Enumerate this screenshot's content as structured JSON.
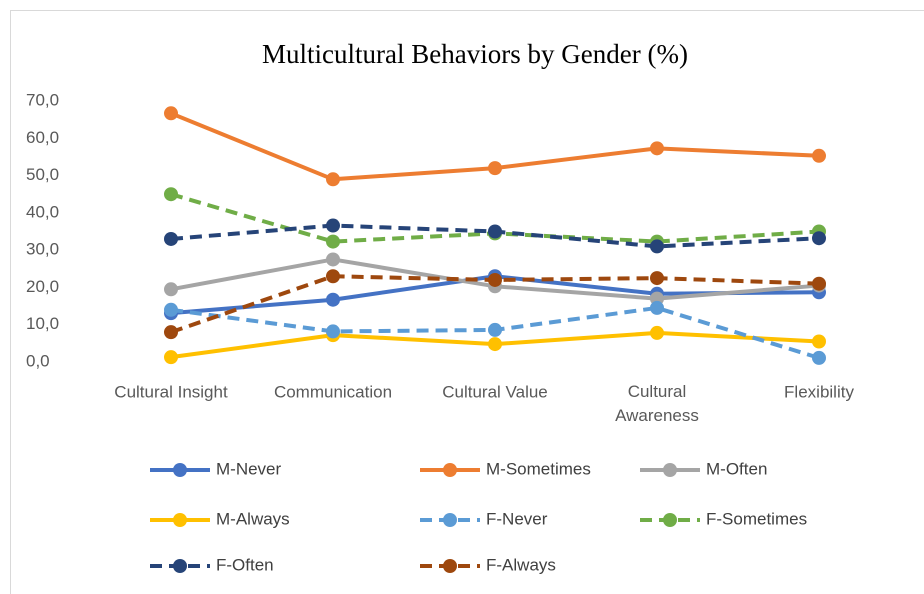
{
  "chart_data": {
    "type": "line",
    "title": "Multicultural Behaviors by Gender (%)",
    "categories": [
      "Cultural Insight",
      "Communication",
      "Cultural Value",
      "Cultural Awareness",
      "Flexibility"
    ],
    "ylim": [
      0,
      70
    ],
    "yticks": [
      {
        "value": 0,
        "label": "0,0"
      },
      {
        "value": 10,
        "label": "10,0"
      },
      {
        "value": 20,
        "label": "20,0"
      },
      {
        "value": 30,
        "label": "30,0"
      },
      {
        "value": 40,
        "label": "40,0"
      },
      {
        "value": 50,
        "label": "50,0"
      },
      {
        "value": 60,
        "label": "60,0"
      },
      {
        "value": 70,
        "label": "70,0"
      }
    ],
    "grid": false,
    "legend": "bottom",
    "series": [
      {
        "name": "M-Never",
        "color": "#4472c4",
        "style": "solid",
        "values": [
          13.1,
          16.7,
          23.0,
          18.3,
          18.7
        ]
      },
      {
        "name": "M-Sometimes",
        "color": "#ed7d31",
        "style": "solid",
        "values": [
          66.7,
          49.0,
          52.0,
          57.3,
          55.3
        ]
      },
      {
        "name": "M-Often",
        "color": "#a5a5a5",
        "style": "solid",
        "values": [
          19.5,
          27.5,
          20.3,
          17.0,
          20.5
        ]
      },
      {
        "name": "M-Always",
        "color": "#ffc000",
        "style": "solid",
        "values": [
          1.3,
          7.2,
          4.8,
          7.8,
          5.5
        ]
      },
      {
        "name": "F-Never",
        "color": "#5b9bd5",
        "style": "dashed",
        "values": [
          14.0,
          8.2,
          8.6,
          14.5,
          1.1
        ]
      },
      {
        "name": "F-Sometimes",
        "color": "#70ad47",
        "style": "dashed",
        "values": [
          45.0,
          32.3,
          34.5,
          32.3,
          35.0
        ]
      },
      {
        "name": "F-Often",
        "color": "#264478",
        "style": "dashed",
        "values": [
          33.0,
          36.6,
          35.0,
          31.0,
          33.2
        ]
      },
      {
        "name": "F-Always",
        "color": "#9e480e",
        "style": "dashed",
        "values": [
          8.0,
          23.0,
          22.0,
          22.5,
          21.0
        ]
      }
    ]
  }
}
